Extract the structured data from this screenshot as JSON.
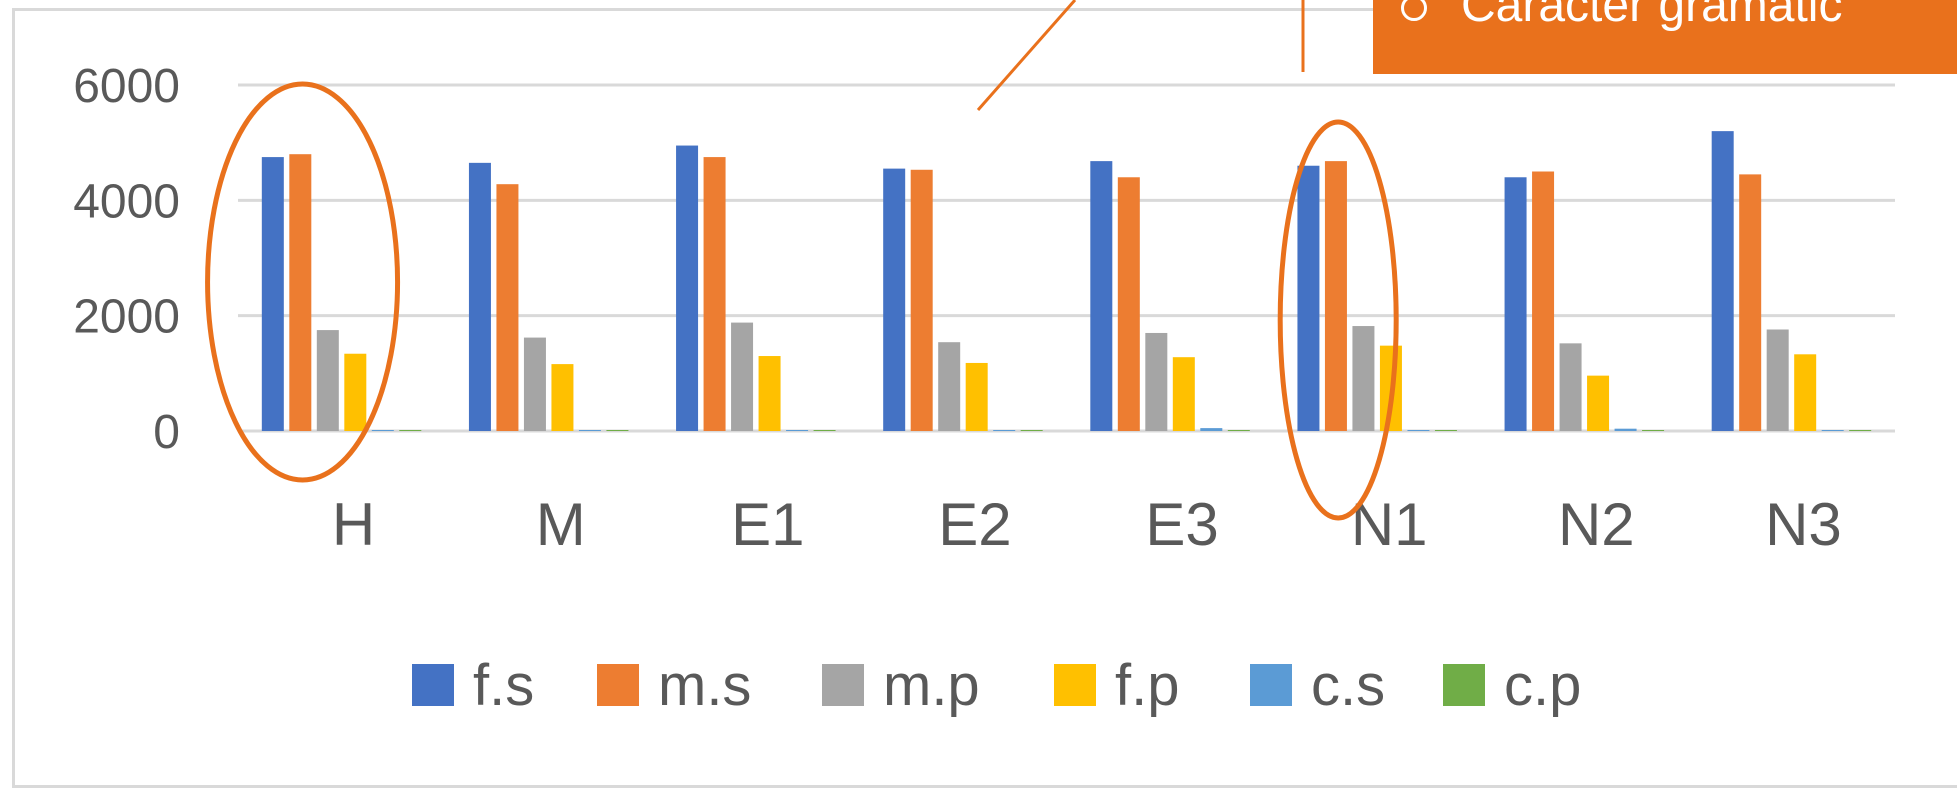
{
  "callout": {
    "text": "Caracter gramatic"
  },
  "colors": {
    "f.s": "#4472c4",
    "m.s": "#ed7d31",
    "m.p": "#a5a5a5",
    "f.p": "#ffc000",
    "c.s": "#5b9bd5",
    "c.p": "#70ad47",
    "highlight": "#e9711c",
    "grid": "#d9d9d9",
    "text": "#595959"
  },
  "chart_data": {
    "type": "bar",
    "categories": [
      "H",
      "M",
      "E1",
      "E2",
      "E3",
      "N1",
      "N2",
      "N3"
    ],
    "series": [
      {
        "name": "f.s",
        "values": [
          4750,
          4650,
          4950,
          4550,
          4680,
          4600,
          4400,
          5200
        ]
      },
      {
        "name": "m.s",
        "values": [
          4800,
          4280,
          4750,
          4530,
          4400,
          4680,
          4500,
          4450
        ]
      },
      {
        "name": "m.p",
        "values": [
          1750,
          1620,
          1880,
          1540,
          1700,
          1820,
          1520,
          1760
        ]
      },
      {
        "name": "f.p",
        "values": [
          1340,
          1160,
          1300,
          1180,
          1280,
          1480,
          960,
          1330
        ]
      },
      {
        "name": "c.s",
        "values": [
          10,
          15,
          8,
          10,
          50,
          12,
          40,
          12
        ]
      },
      {
        "name": "c.p",
        "values": [
          5,
          8,
          5,
          5,
          10,
          6,
          8,
          6
        ]
      }
    ],
    "yticks": [
      0,
      2000,
      4000,
      6000
    ],
    "ylim": [
      0,
      6000
    ],
    "grid": true,
    "legend_position": "bottom",
    "highlighted_categories": [
      "H",
      "N1"
    ]
  }
}
